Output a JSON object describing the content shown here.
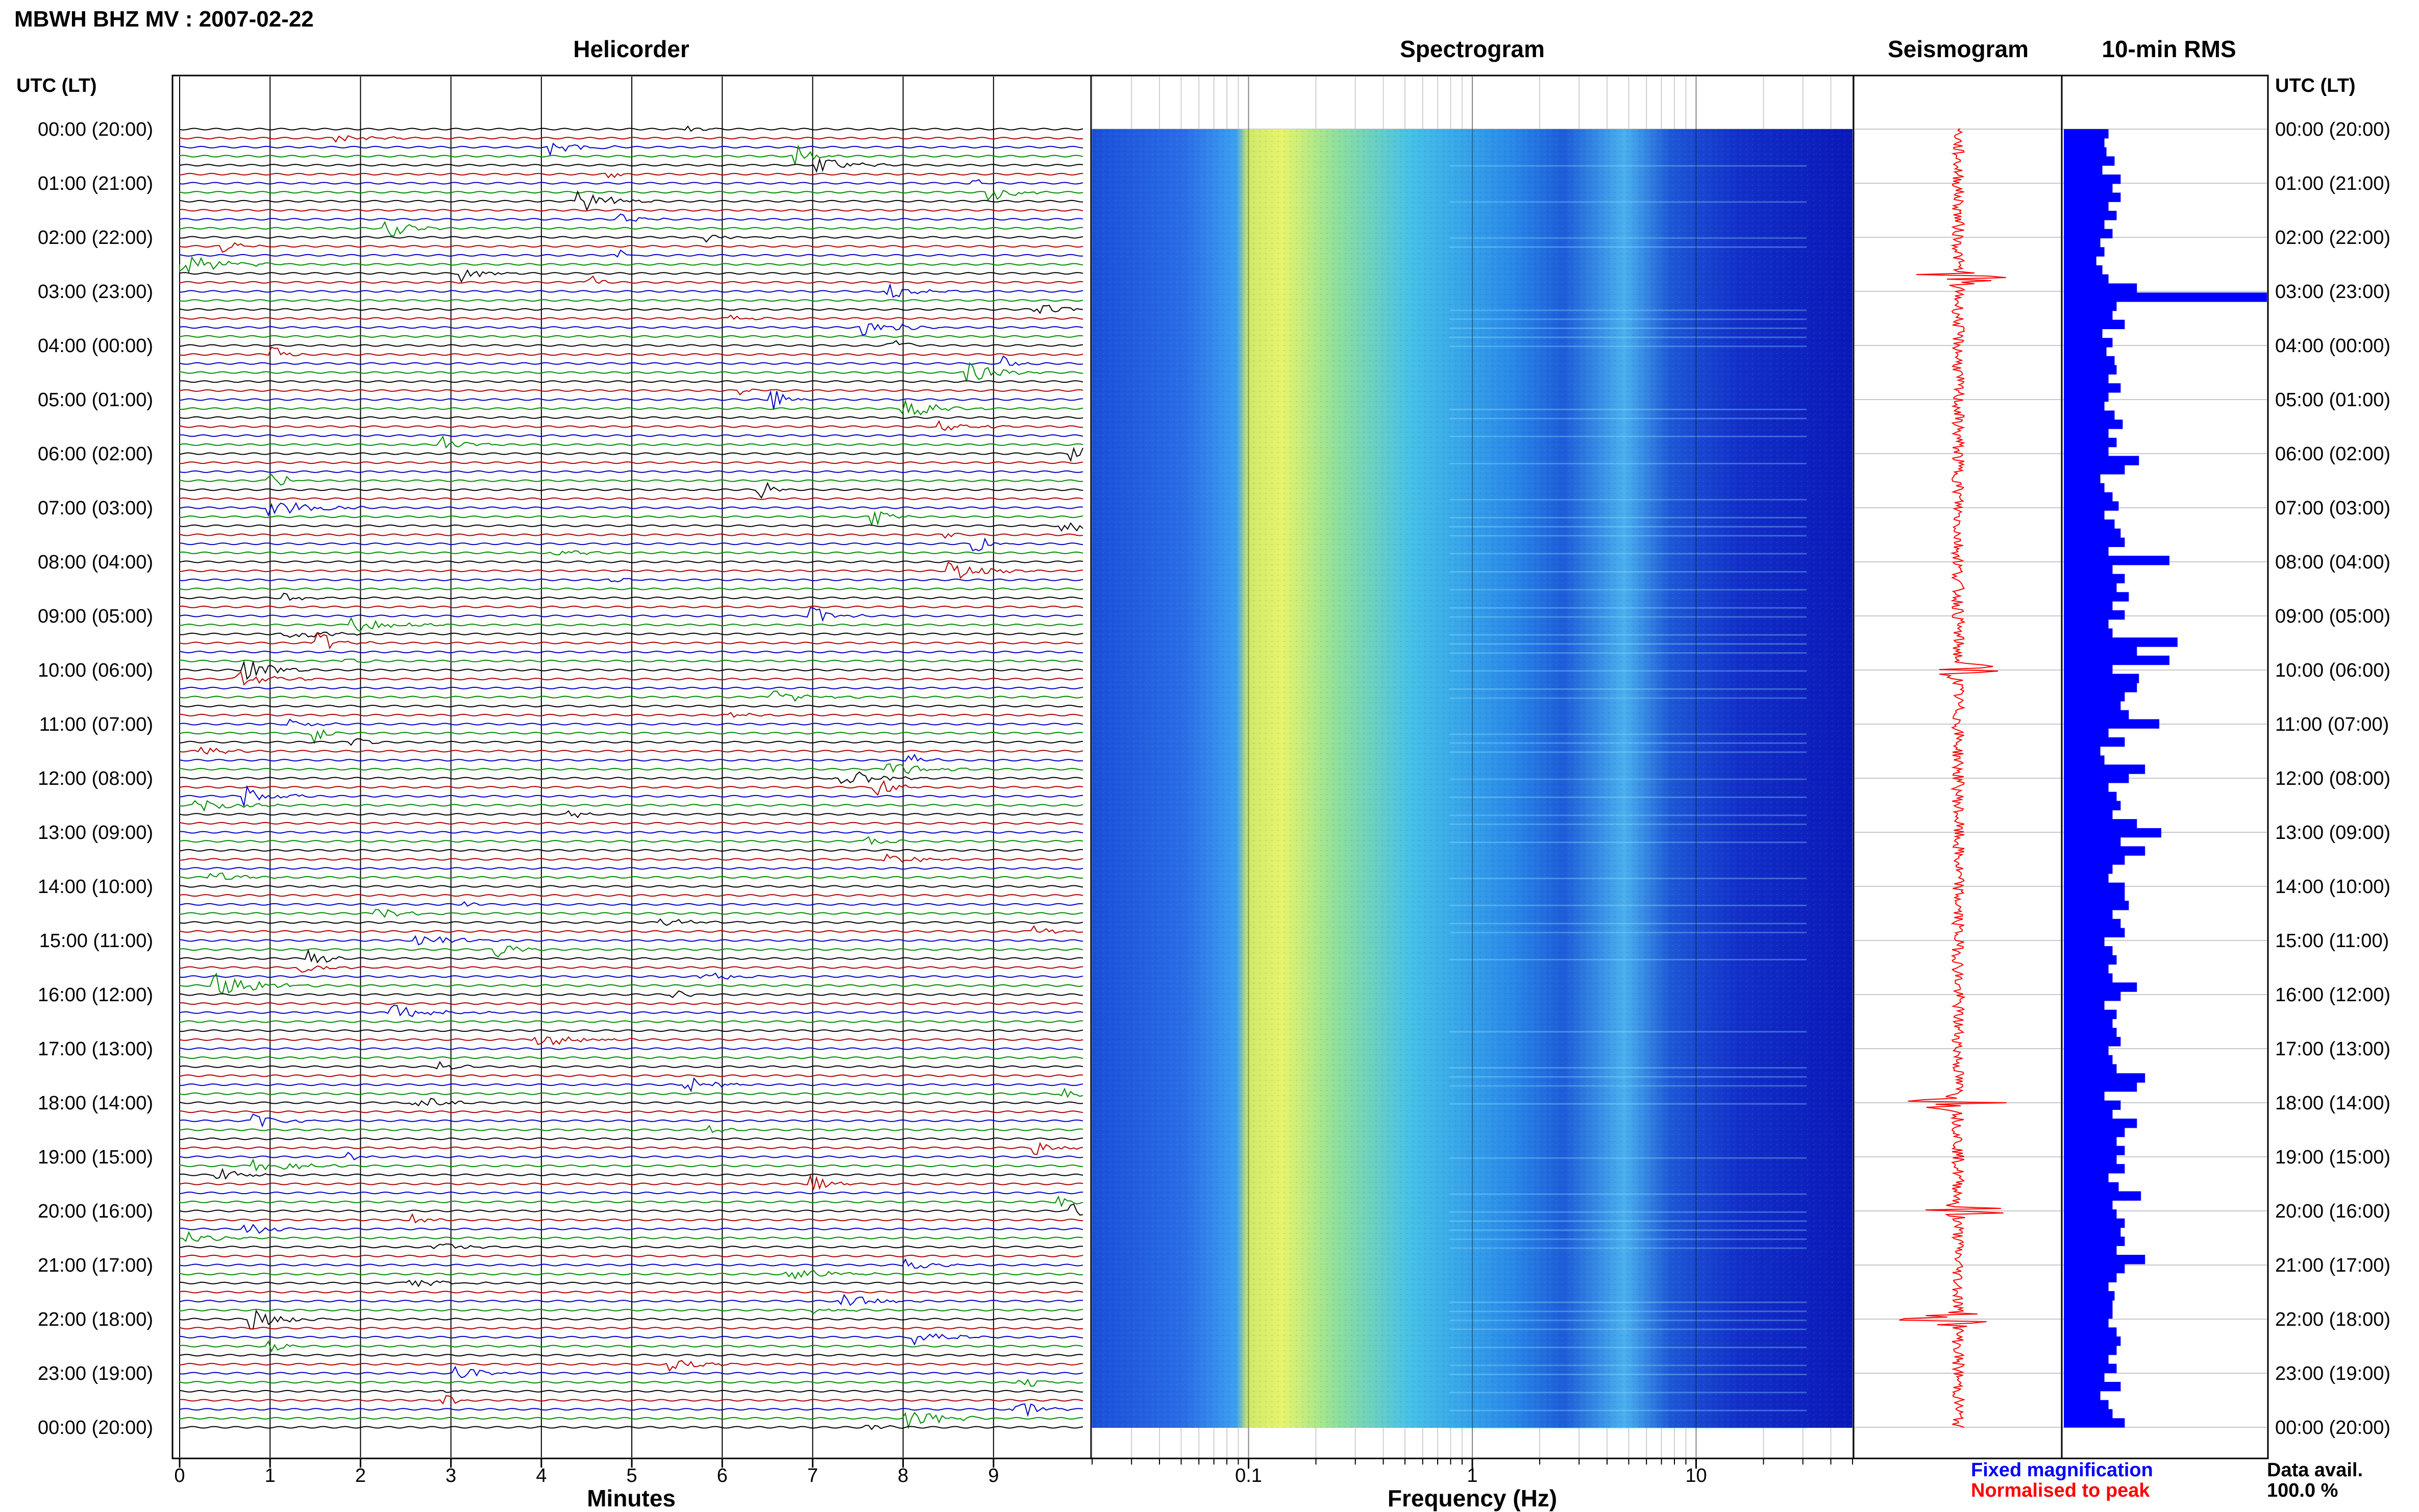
{
  "title": "MBWH BHZ MV : 2007-02-22",
  "time_axis_label": "UTC (LT)",
  "panels": {
    "helicorder": {
      "title": "Helicorder",
      "xlabel": "Minutes"
    },
    "spectrogram": {
      "title": "Spectrogram",
      "xlabel": "Frequency (Hz)"
    },
    "seismogram": {
      "title": "Seismogram"
    },
    "rms": {
      "title": "10-min RMS"
    }
  },
  "legend": {
    "fixed": "Fixed magnification",
    "fixed_color": "#0000ff",
    "normalised": "Normalised to peak",
    "normalised_color": "#ff0000"
  },
  "data_availability": {
    "label": "Data avail.",
    "value": "100.0 %"
  },
  "colors": {
    "trace_cycle": [
      "#000000",
      "#b00000",
      "#0000c8",
      "#008c00"
    ],
    "seismogram": "#ff0000",
    "rms_bar": "#0000ff"
  },
  "chart_data": [
    {
      "type": "line",
      "name": "helicorder",
      "title": "Helicorder",
      "xlabel": "Minutes",
      "x_ticks": [
        0,
        1,
        2,
        3,
        4,
        5,
        6,
        7,
        8,
        9
      ],
      "xlim": [
        0,
        10
      ],
      "lines_per_hour": 6,
      "y_tick_labels": [
        "00:00 (20:00)",
        "01:00 (21:00)",
        "02:00 (22:00)",
        "03:00 (23:00)",
        "04:00 (00:00)",
        "05:00 (01:00)",
        "06:00 (02:00)",
        "07:00 (03:00)",
        "08:00 (04:00)",
        "09:00 (05:00)",
        "10:00 (06:00)",
        "11:00 (07:00)",
        "12:00 (08:00)",
        "13:00 (09:00)",
        "14:00 (10:00)",
        "15:00 (11:00)",
        "16:00 (12:00)",
        "17:00 (13:00)",
        "18:00 (14:00)",
        "19:00 (15:00)",
        "20:00 (16:00)",
        "21:00 (17:00)",
        "22:00 (18:00)",
        "23:00 (19:00)",
        "00:00 (20:00)"
      ]
    },
    {
      "type": "heatmap",
      "name": "spectrogram",
      "title": "Spectrogram",
      "xlabel": "Frequency (Hz)",
      "x_scale": "log",
      "xlim": [
        0.02,
        50
      ],
      "x_tick_labels": [
        "0.1",
        "1",
        "10"
      ],
      "x_tick_values": [
        0.1,
        1,
        10
      ]
    },
    {
      "type": "line",
      "name": "seismogram",
      "title": "Seismogram",
      "note_peak_hours": [
        2.75,
        10,
        18,
        20,
        22
      ]
    },
    {
      "type": "bar",
      "name": "rms",
      "title": "10-min RMS",
      "orientation": "horizontal",
      "xlim": [
        0,
        1
      ],
      "values": [
        0.22,
        0.2,
        0.21,
        0.25,
        0.19,
        0.28,
        0.24,
        0.28,
        0.22,
        0.26,
        0.2,
        0.24,
        0.18,
        0.2,
        0.16,
        0.19,
        0.22,
        0.36,
        1.0,
        0.26,
        0.24,
        0.3,
        0.19,
        0.24,
        0.21,
        0.25,
        0.26,
        0.22,
        0.28,
        0.22,
        0.2,
        0.25,
        0.29,
        0.22,
        0.26,
        0.22,
        0.37,
        0.3,
        0.18,
        0.2,
        0.24,
        0.27,
        0.2,
        0.25,
        0.28,
        0.3,
        0.22,
        0.52,
        0.24,
        0.3,
        0.26,
        0.32,
        0.24,
        0.3,
        0.22,
        0.24,
        0.56,
        0.36,
        0.52,
        0.24,
        0.37,
        0.36,
        0.3,
        0.28,
        0.32,
        0.47,
        0.22,
        0.3,
        0.18,
        0.2,
        0.4,
        0.32,
        0.22,
        0.26,
        0.28,
        0.24,
        0.36,
        0.48,
        0.28,
        0.4,
        0.3,
        0.24,
        0.22,
        0.3,
        0.3,
        0.32,
        0.24,
        0.28,
        0.3,
        0.2,
        0.24,
        0.26,
        0.22,
        0.24,
        0.36,
        0.28,
        0.2,
        0.26,
        0.24,
        0.26,
        0.28,
        0.22,
        0.24,
        0.26,
        0.4,
        0.36,
        0.2,
        0.28,
        0.24,
        0.36,
        0.3,
        0.26,
        0.3,
        0.26,
        0.3,
        0.22,
        0.27,
        0.38,
        0.24,
        0.26,
        0.3,
        0.28,
        0.3,
        0.26,
        0.4,
        0.3,
        0.26,
        0.22,
        0.25,
        0.24,
        0.24,
        0.22,
        0.26,
        0.28,
        0.26,
        0.22,
        0.26,
        0.2,
        0.28,
        0.18,
        0.22,
        0.24,
        0.3
      ]
    }
  ]
}
